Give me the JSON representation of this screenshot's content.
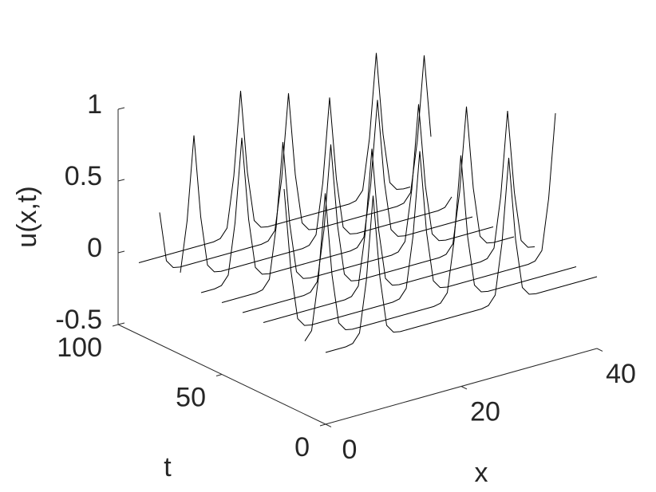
{
  "chart_data": {
    "type": "waterfall3d",
    "xlabel": "x",
    "ylabel": "t",
    "zlabel": "u(x,t)",
    "xlim": [
      0,
      40
    ],
    "xticks": [
      0,
      20,
      40
    ],
    "ylim": [
      0,
      100
    ],
    "yticks": [
      0,
      50,
      100
    ],
    "zlim": [
      -0.5,
      1
    ],
    "zticks": [
      -0.5,
      0,
      0.5,
      1
    ],
    "color": "#000000",
    "x": [
      0,
      1,
      2,
      3,
      4,
      5,
      6,
      7,
      8,
      9,
      10,
      11,
      12,
      13,
      14,
      15,
      16,
      17,
      18,
      19,
      20,
      21,
      22,
      23,
      24,
      25,
      26,
      27,
      28,
      29,
      30,
      31,
      32,
      33,
      34,
      35,
      36,
      37,
      38,
      39,
      40
    ],
    "series": [
      {
        "t": 90,
        "values": [
          0,
          0,
          0,
          0,
          0,
          0,
          0,
          0,
          0,
          0,
          0,
          0,
          0.01,
          0.07,
          0.42,
          1,
          0.42,
          0.07,
          0.01,
          0,
          0,
          0,
          0,
          0,
          0,
          0,
          0,
          0,
          0,
          0,
          0,
          0,
          0.01,
          0.07,
          0.42,
          1,
          0.42,
          0.07,
          0.01,
          0,
          0
        ]
      },
      {
        "t": 80,
        "values": [
          0.42,
          0.07,
          0.01,
          0,
          0,
          0,
          0,
          0,
          0,
          0,
          0,
          0,
          0,
          0,
          0,
          0,
          0.01,
          0.07,
          0.42,
          1,
          0.42,
          0.07,
          0.01,
          0,
          0,
          0,
          0,
          0,
          0,
          0,
          0,
          0,
          0,
          0,
          0,
          0,
          0.01,
          0.07,
          0.42,
          1,
          0.42
        ]
      },
      {
        "t": 70,
        "values": [
          0.07,
          0.42,
          1,
          0.42,
          0.07,
          0.01,
          0,
          0,
          0,
          0,
          0,
          0,
          0,
          0,
          0,
          0,
          0,
          0,
          0,
          0.01,
          0.07,
          0.42,
          1,
          0.42,
          0.07,
          0.01,
          0,
          0,
          0,
          0,
          0,
          0,
          0,
          0,
          0,
          0,
          0,
          0,
          0,
          0.01,
          0.07
        ]
      },
      {
        "t": 60,
        "values": [
          0,
          0,
          0,
          0.01,
          0.07,
          0.42,
          1,
          0.42,
          0.07,
          0.01,
          0,
          0,
          0,
          0,
          0,
          0,
          0,
          0,
          0,
          0,
          0,
          0,
          0,
          0.01,
          0.07,
          0.42,
          1,
          0.42,
          0.07,
          0.01,
          0,
          0,
          0,
          0,
          0,
          0,
          0,
          0,
          0,
          0,
          0
        ]
      },
      {
        "t": 50,
        "values": [
          0,
          0,
          0,
          0,
          0,
          0,
          0.01,
          0.07,
          0.42,
          1,
          0.42,
          0.07,
          0.01,
          0,
          0,
          0,
          0,
          0,
          0,
          0,
          0,
          0,
          0,
          0,
          0,
          0,
          0.01,
          0.07,
          0.42,
          1,
          0.42,
          0.07,
          0.01,
          0,
          0,
          0,
          0,
          0,
          0,
          0,
          0
        ]
      },
      {
        "t": 40,
        "values": [
          0,
          0,
          0,
          0,
          0,
          0,
          0,
          0,
          0,
          0,
          0.01,
          0.07,
          0.42,
          1,
          0.42,
          0.07,
          0.01,
          0,
          0,
          0,
          0,
          0,
          0,
          0,
          0,
          0,
          0,
          0,
          0,
          0,
          0.01,
          0.07,
          0.42,
          1,
          0.42,
          0.07,
          0.01,
          0,
          0,
          0,
          0
        ]
      },
      {
        "t": 30,
        "values": [
          0,
          0,
          0,
          0,
          0,
          0,
          0,
          0,
          0,
          0,
          0,
          0,
          0,
          0.01,
          0.07,
          0.42,
          1,
          0.42,
          0.07,
          0.01,
          0,
          0,
          0,
          0,
          0,
          0,
          0,
          0,
          0,
          0,
          0,
          0,
          0,
          0.01,
          0.07,
          0.42,
          1,
          0.42,
          0.07,
          0.01,
          0
        ]
      },
      {
        "t": 20,
        "values": [
          1,
          0.42,
          0.07,
          0.01,
          0,
          0,
          0,
          0,
          0,
          0,
          0,
          0,
          0,
          0,
          0,
          0,
          0,
          0.01,
          0.07,
          0.42,
          1,
          0.42,
          0.07,
          0.01,
          0,
          0,
          0,
          0,
          0,
          0,
          0,
          0,
          0,
          0,
          0,
          0,
          0,
          0.01,
          0.07,
          0.42,
          1
        ]
      },
      {
        "t": 10,
        "values": [
          0.01,
          0.07,
          0.42,
          1,
          0.42,
          0.07,
          0.01,
          0,
          0,
          0,
          0,
          0,
          0,
          0,
          0,
          0,
          0,
          0,
          0,
          0,
          0.01,
          0.07,
          0.42,
          1,
          0.42,
          0.07,
          0.01,
          0,
          0,
          0,
          0,
          0,
          0,
          0,
          0,
          0,
          0,
          0,
          0,
          0,
          0
        ]
      },
      {
        "t": 0,
        "values": [
          0,
          0,
          0,
          0,
          0.01,
          0.07,
          0.42,
          1,
          0.42,
          0.07,
          0.01,
          0,
          0,
          0,
          0,
          0,
          0,
          0,
          0,
          0,
          0,
          0,
          0,
          0,
          0.01,
          0.07,
          0.42,
          1,
          0.42,
          0.07,
          0.01,
          0,
          0,
          0,
          0,
          0,
          0,
          0,
          0,
          0,
          0
        ]
      }
    ]
  }
}
